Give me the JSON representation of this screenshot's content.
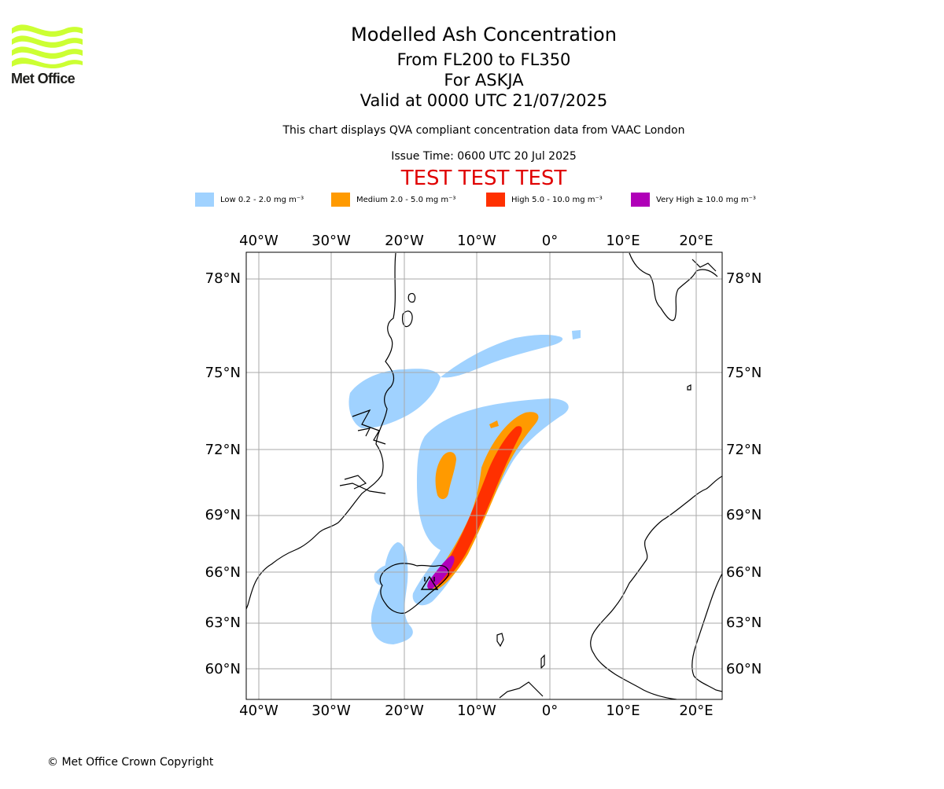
{
  "logo": {
    "text": "Met Office",
    "accent_color": "#ccff33"
  },
  "title": {
    "main": "Modelled Ash Concentration",
    "levels": "From FL200 to FL350",
    "volcano": "For ASKJA",
    "valid": "Valid at 0000 UTC 21/07/2025",
    "note": "This chart displays QVA compliant concentration data from VAAC London",
    "issue": "Issue Time: 0600 UTC 20 Jul 2025",
    "test_banner": "TEST TEST TEST",
    "test_color": "#e00000"
  },
  "legend": [
    {
      "label": "Low 0.2 - 2.0 mg m⁻³",
      "color": "#a0d2ff"
    },
    {
      "label": "Medium 2.0 - 5.0 mg m⁻³",
      "color": "#ff9a00"
    },
    {
      "label": "High 5.0 - 10.0 mg m⁻³",
      "color": "#ff3000"
    },
    {
      "label": "Very High ≥ 10.0 mg m⁻³",
      "color": "#b000b8"
    }
  ],
  "map": {
    "lon_labels": [
      "40°W",
      "30°W",
      "20°W",
      "10°W",
      "0°",
      "10°E",
      "20°E"
    ],
    "lat_labels": [
      "78°N",
      "75°N",
      "72°N",
      "69°N",
      "66°N",
      "63°N",
      "60°N"
    ],
    "gridline_color": "#aaaaaa"
  },
  "footer": "© Met Office Crown Copyright"
}
